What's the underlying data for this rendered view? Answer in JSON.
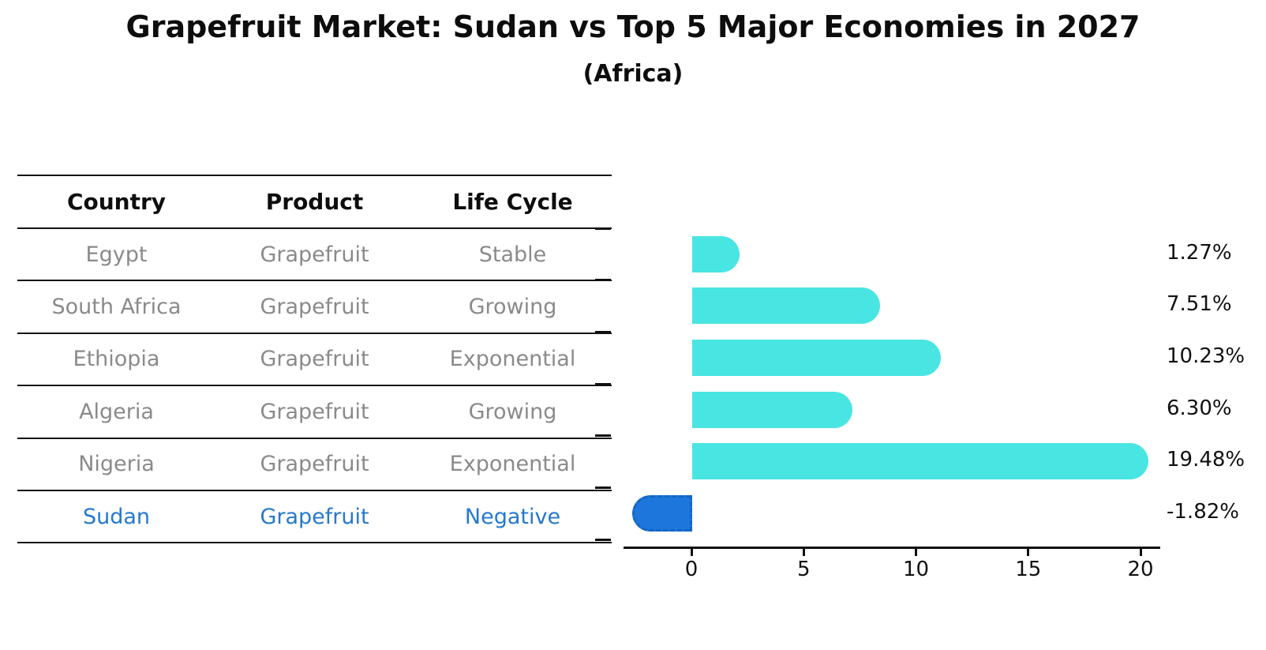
{
  "title": "Grapefruit Market: Sudan vs Top 5 Major Economies in 2027",
  "subtitle": "(Africa)",
  "table": {
    "headers": [
      "Country",
      "Product",
      "Life Cycle"
    ],
    "rows": [
      {
        "country": "Egypt",
        "product": "Grapefruit",
        "life_cycle": "Stable",
        "highlighted": false
      },
      {
        "country": "South Africa",
        "product": "Grapefruit",
        "life_cycle": "Growing",
        "highlighted": false
      },
      {
        "country": "Ethiopia",
        "product": "Grapefruit",
        "life_cycle": "Exponential",
        "highlighted": false
      },
      {
        "country": "Algeria",
        "product": "Grapefruit",
        "life_cycle": "Growing",
        "highlighted": false
      },
      {
        "country": "Nigeria",
        "product": "Grapefruit",
        "life_cycle": "Exponential",
        "highlighted": false
      },
      {
        "country": "Sudan",
        "product": "Grapefruit",
        "life_cycle": "Negative",
        "highlighted": true
      }
    ]
  },
  "chart_data": {
    "type": "bar",
    "orientation": "horizontal",
    "title": "Grapefruit Market: Sudan vs Top 5 Major Economies in 2027",
    "subtitle": "(Africa)",
    "categories": [
      "Egypt",
      "South Africa",
      "Ethiopia",
      "Algeria",
      "Nigeria",
      "Sudan"
    ],
    "values": [
      1.27,
      7.51,
      10.23,
      6.3,
      19.48,
      -1.82
    ],
    "value_labels": [
      "1.27%",
      "7.51%",
      "10.23%",
      "6.30%",
      "19.48%",
      "-1.82%"
    ],
    "highlight_index": 5,
    "xticks": [
      0,
      5,
      10,
      15,
      20
    ],
    "xlim": [
      -3,
      21
    ],
    "xlabel": "",
    "ylabel": "",
    "grid": false,
    "legend": false
  },
  "colors": {
    "bar": "#49e5e3",
    "highlight_bar": "#1c76db",
    "highlight_bar_edge": "#1566c2",
    "highlight_text": "#2578cd",
    "muted_text": "#8a8a8a",
    "heading_text": "#0d0d0d"
  }
}
